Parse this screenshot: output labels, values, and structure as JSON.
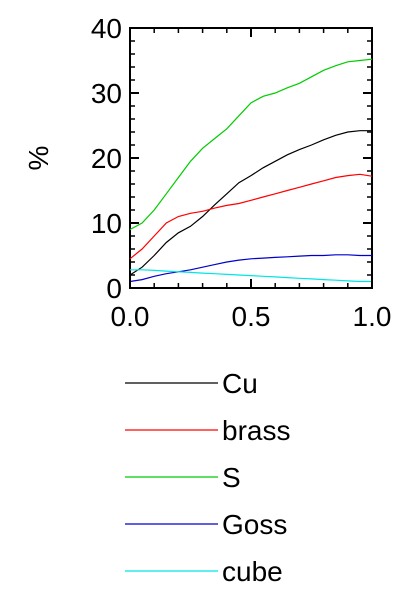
{
  "chart_data": {
    "type": "line",
    "title": "",
    "xlabel": "",
    "ylabel": "%",
    "xlim": [
      0.0,
      1.0
    ],
    "ylim": [
      0,
      40
    ],
    "grid": false,
    "legend_position": "bottom",
    "x_ticks": [
      "0.0",
      "0.5",
      "1.0"
    ],
    "y_ticks": [
      "0",
      "10",
      "20",
      "30",
      "40"
    ],
    "series": [
      {
        "name": "Cu",
        "color": "#000000",
        "x": [
          0.0,
          0.05,
          0.1,
          0.15,
          0.2,
          0.25,
          0.3,
          0.35,
          0.4,
          0.45,
          0.5,
          0.55,
          0.6,
          0.65,
          0.7,
          0.75,
          0.8,
          0.85,
          0.9,
          0.95,
          1.0
        ],
        "values": [
          2.0,
          3.2,
          5.0,
          7.0,
          8.5,
          9.5,
          11.0,
          12.8,
          14.5,
          16.2,
          17.3,
          18.5,
          19.5,
          20.5,
          21.3,
          22.0,
          22.8,
          23.5,
          24.0,
          24.2,
          24.2
        ]
      },
      {
        "name": "brass",
        "color": "#ff0000",
        "x": [
          0.0,
          0.05,
          0.1,
          0.15,
          0.2,
          0.25,
          0.3,
          0.35,
          0.4,
          0.45,
          0.5,
          0.55,
          0.6,
          0.65,
          0.7,
          0.75,
          0.8,
          0.85,
          0.9,
          0.95,
          1.0
        ],
        "values": [
          4.5,
          6.0,
          8.0,
          10.0,
          11.0,
          11.5,
          11.8,
          12.3,
          12.7,
          13.0,
          13.5,
          14.0,
          14.5,
          15.0,
          15.5,
          16.0,
          16.5,
          17.0,
          17.3,
          17.5,
          17.2
        ]
      },
      {
        "name": "S",
        "color": "#00cc00",
        "x": [
          0.0,
          0.05,
          0.1,
          0.15,
          0.2,
          0.25,
          0.3,
          0.35,
          0.4,
          0.45,
          0.5,
          0.55,
          0.6,
          0.65,
          0.7,
          0.75,
          0.8,
          0.85,
          0.9,
          0.95,
          1.0
        ],
        "values": [
          9.0,
          10.0,
          12.0,
          14.5,
          17.0,
          19.5,
          21.5,
          23.0,
          24.5,
          26.5,
          28.5,
          29.5,
          30.0,
          30.8,
          31.5,
          32.5,
          33.5,
          34.2,
          34.8,
          35.0,
          35.2
        ]
      },
      {
        "name": "Goss",
        "color": "#0000cc",
        "x": [
          0.0,
          0.05,
          0.1,
          0.15,
          0.2,
          0.25,
          0.3,
          0.35,
          0.4,
          0.45,
          0.5,
          0.55,
          0.6,
          0.65,
          0.7,
          0.75,
          0.8,
          0.85,
          0.9,
          0.95,
          1.0
        ],
        "values": [
          1.0,
          1.3,
          1.8,
          2.2,
          2.5,
          2.8,
          3.2,
          3.6,
          4.0,
          4.3,
          4.5,
          4.6,
          4.7,
          4.8,
          4.9,
          5.0,
          5.0,
          5.1,
          5.1,
          5.0,
          5.0
        ]
      },
      {
        "name": "cube",
        "color": "#00e5e5",
        "x": [
          0.0,
          0.05,
          0.1,
          0.15,
          0.2,
          0.25,
          0.3,
          0.35,
          0.4,
          0.45,
          0.5,
          0.55,
          0.6,
          0.65,
          0.7,
          0.75,
          0.8,
          0.85,
          0.9,
          0.95,
          1.0
        ],
        "values": [
          2.8,
          2.8,
          2.7,
          2.6,
          2.5,
          2.4,
          2.3,
          2.2,
          2.1,
          2.0,
          1.9,
          1.8,
          1.7,
          1.6,
          1.5,
          1.4,
          1.3,
          1.2,
          1.1,
          1.0,
          1.0
        ]
      }
    ]
  }
}
